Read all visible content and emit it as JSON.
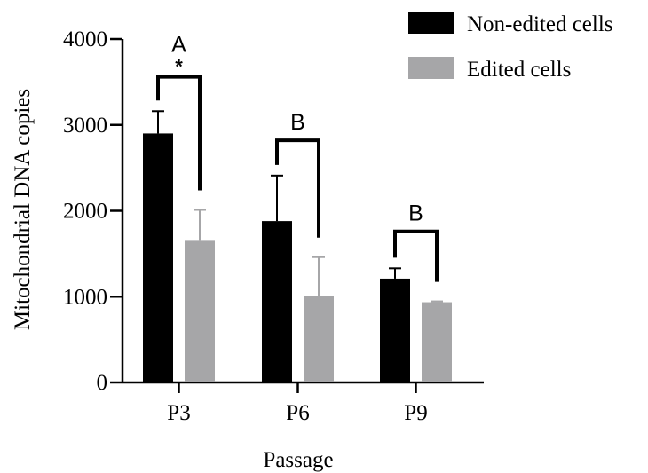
{
  "chart_data": {
    "type": "bar",
    "xlabel": "Passage",
    "ylabel": "Mitochondrial  DNA copies",
    "ylim": [
      0,
      4000
    ],
    "yticks": [
      0,
      1000,
      2000,
      3000,
      4000
    ],
    "categories": [
      "P3",
      "P6",
      "P9"
    ],
    "series": [
      {
        "name": "Non-edited cells",
        "color": "#000000",
        "values": [
          2900,
          1880,
          1210
        ],
        "errors": [
          260,
          530,
          120
        ]
      },
      {
        "name": "Edited cells",
        "color": "#a6a6a8",
        "values": [
          1650,
          1010,
          935
        ],
        "errors": [
          360,
          450,
          10
        ]
      }
    ],
    "legend_position": "top-right",
    "annotations": [
      {
        "category": "P3",
        "letter": "A",
        "mark": "*",
        "bracket_top": 3560
      },
      {
        "category": "P6",
        "letter": "B",
        "mark": "",
        "bracket_top": 2820
      },
      {
        "category": "P9",
        "letter": "B",
        "mark": "",
        "bracket_top": 1760
      }
    ]
  }
}
